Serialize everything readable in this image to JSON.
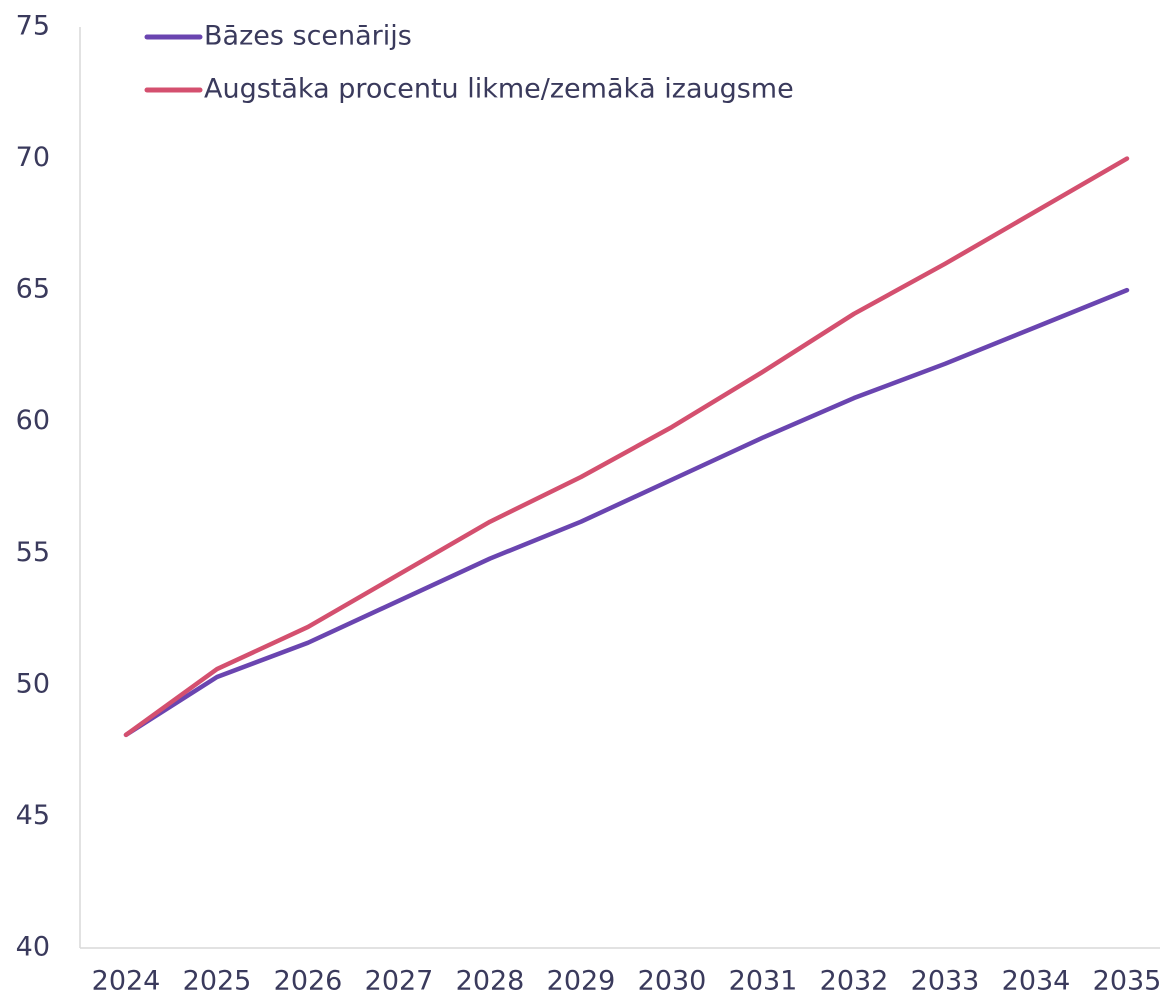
{
  "chart_data": {
    "type": "line",
    "categories": [
      "2024",
      "2025",
      "2026",
      "2027",
      "2028",
      "2029",
      "2030",
      "2031",
      "2032",
      "2033",
      "2034",
      "2035"
    ],
    "series": [
      {
        "name": "Bāzes scenārijs",
        "color": "#6a45b0",
        "values": [
          48.1,
          50.3,
          51.6,
          53.2,
          54.8,
          56.2,
          57.8,
          59.4,
          60.9,
          62.2,
          63.6,
          65.0
        ]
      },
      {
        "name": "Augstāka procentu likme/zemākā izaugsme",
        "color": "#d4506f",
        "values": [
          48.1,
          50.6,
          52.2,
          54.2,
          56.2,
          57.9,
          59.8,
          61.9,
          64.1,
          66.0,
          68.0,
          70.0
        ]
      }
    ],
    "ylim": [
      40,
      75
    ],
    "yticks": [
      40,
      45,
      50,
      55,
      60,
      65,
      70,
      75
    ],
    "grid": false,
    "legend": "top"
  }
}
